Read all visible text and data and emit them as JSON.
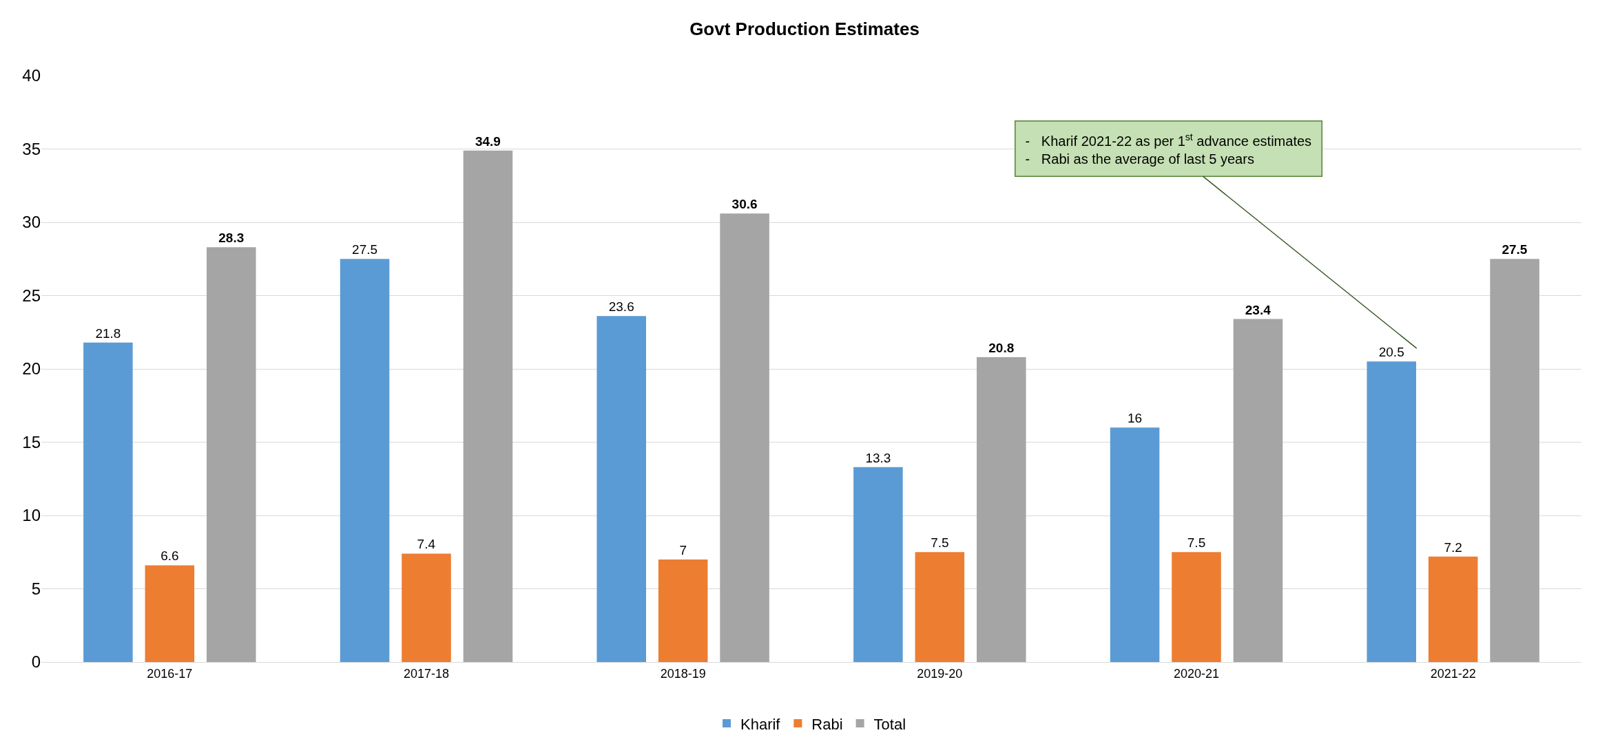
{
  "chart_data": {
    "type": "bar",
    "title": "Govt Production Estimates",
    "categories": [
      "2016-17",
      "2017-18",
      "2018-19",
      "2019-20",
      "2020-21",
      "2021-22"
    ],
    "series": [
      {
        "name": "Kharif",
        "color": "#5b9bd5",
        "values": [
          21.8,
          27.5,
          23.6,
          13.3,
          16,
          20.5
        ]
      },
      {
        "name": "Rabi",
        "color": "#ed7d31",
        "values": [
          6.6,
          7.4,
          7,
          7.5,
          7.5,
          7.2
        ]
      },
      {
        "name": "Total",
        "color": "#a5a5a5",
        "values": [
          28.3,
          34.9,
          30.6,
          20.8,
          23.4,
          27.5
        ]
      }
    ],
    "ylim": [
      0,
      40
    ],
    "yticks": [
      0,
      5,
      10,
      15,
      20,
      25,
      30,
      35,
      40
    ],
    "grid": "y",
    "legend": "bottom",
    "data_labels": true,
    "annotations": [
      "-   Kharif 2021-22 as per 1$^{st}$ advance estimates\n-   Rabi as the average of last 5 years"
    ]
  }
}
